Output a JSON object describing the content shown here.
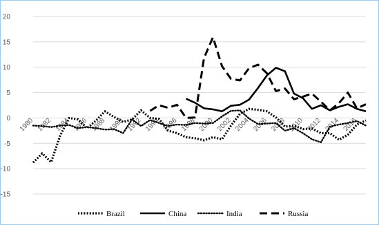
{
  "chart_data": {
    "type": "line",
    "title": "",
    "xlabel": "",
    "ylabel": "",
    "ylim": [
      -15,
      20
    ],
    "yticks": [
      "20",
      "15",
      "10",
      "5",
      "0",
      "-5",
      "-10",
      "-15"
    ],
    "grid": "horizontal",
    "legend_position": "bottom",
    "xticks": [
      "1980",
      "1982",
      "1984",
      "1986",
      "1988",
      "1990",
      "1992",
      "1994",
      "1996",
      "1998",
      "2000",
      "2002",
      "2004",
      "2006",
      "2008",
      "2010",
      "2012",
      "2014",
      "2016"
    ],
    "x": [
      1980,
      1981,
      1982,
      1983,
      1984,
      1985,
      1986,
      1987,
      1988,
      1989,
      1990,
      1991,
      1992,
      1993,
      1994,
      1995,
      1996,
      1997,
      1998,
      1999,
      2000,
      2001,
      2002,
      2003,
      2004,
      2005,
      2006,
      2007,
      2008,
      2009,
      2010,
      2011,
      2012,
      2013,
      2014,
      2015,
      2016,
      2017
    ],
    "series": [
      {
        "name": "Brazil",
        "style": "dotted-bold",
        "values": [
          -8.8,
          -7.0,
          -8.7,
          -3.5,
          0.0,
          -0.3,
          -2.0,
          -0.5,
          1.3,
          0.2,
          -0.8,
          -0.3,
          1.5,
          0.0,
          -0.2,
          -2.5,
          -3.0,
          -3.8,
          -4.0,
          -4.4,
          -3.8,
          -4.2,
          -1.5,
          0.8,
          1.8,
          1.6,
          1.3,
          0.1,
          -1.7,
          -1.5,
          -2.2,
          -2.1,
          -3.0,
          -3.0,
          -4.3,
          -3.3,
          -1.3,
          -0.5
        ]
      },
      {
        "name": "China",
        "style": "solid",
        "values": [
          null,
          null,
          null,
          null,
          null,
          null,
          null,
          null,
          null,
          null,
          null,
          null,
          null,
          null,
          null,
          null,
          null,
          3.8,
          3.0,
          1.9,
          1.7,
          1.3,
          2.4,
          2.6,
          3.6,
          5.9,
          8.4,
          9.9,
          9.2,
          4.8,
          3.9,
          1.8,
          2.5,
          1.5,
          2.2,
          2.7,
          1.8,
          1.3
        ]
      },
      {
        "name": "India",
        "style": "dotted",
        "values": [
          -1.5,
          -1.6,
          -1.8,
          -1.5,
          -1.4,
          -2.0,
          -1.8,
          -2.0,
          -2.3,
          -2.2,
          -3.0,
          -0.3,
          -1.6,
          -0.4,
          -1.0,
          -1.6,
          -1.3,
          -1.4,
          -1.0,
          -1.1,
          -1.0,
          0.3,
          1.4,
          1.5,
          -0.1,
          -1.2,
          -1.1,
          -1.0,
          -2.5,
          -2.0,
          -3.0,
          -4.2,
          -4.8,
          -1.7,
          -1.3,
          -1.0,
          -0.6,
          -1.5
        ]
      },
      {
        "name": "Russia",
        "style": "dashed",
        "values": [
          null,
          null,
          null,
          null,
          null,
          null,
          null,
          null,
          null,
          null,
          null,
          null,
          null,
          1.4,
          2.5,
          2.0,
          2.6,
          0.0,
          0.1,
          11.8,
          15.9,
          10.2,
          7.7,
          7.4,
          9.8,
          10.5,
          8.8,
          5.3,
          5.8,
          3.7,
          4.2,
          4.8,
          3.2,
          1.5,
          2.9,
          5.0,
          1.9,
          2.7
        ]
      }
    ]
  }
}
